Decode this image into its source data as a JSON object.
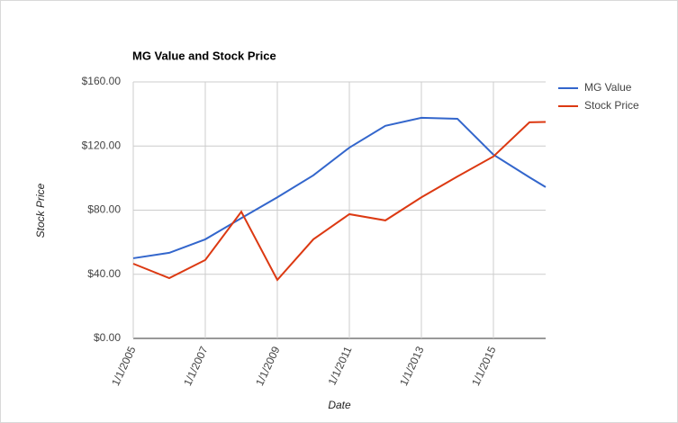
{
  "chart_data": {
    "type": "line",
    "title": "MG Value and Stock Price",
    "x_label": "Date",
    "y_label": "Stock Price",
    "x": [
      2005,
      2006,
      2007,
      2008,
      2009,
      2010,
      2011,
      2012,
      2013,
      2014,
      2015,
      2016,
      2016.45
    ],
    "series": [
      {
        "name": "MG Value",
        "color": "#3366cc",
        "values": [
          50,
          53.4,
          61.8,
          75,
          88,
          101.7,
          119,
          132.6,
          137.6,
          137,
          114.6,
          100.5,
          94.4
        ]
      },
      {
        "name": "Stock Price",
        "color": "#dc3912",
        "values": [
          46.6,
          37.6,
          48.9,
          79,
          36.5,
          61.8,
          77.5,
          73.6,
          88,
          101,
          113.5,
          134.8,
          135
        ]
      }
    ],
    "xlim": [
      2005,
      2016.45
    ],
    "xticks": [
      {
        "value": 2005,
        "label": "1/1/2005"
      },
      {
        "value": 2007,
        "label": "1/1/2007"
      },
      {
        "value": 2009,
        "label": "1/1/2009"
      },
      {
        "value": 2011,
        "label": "1/1/2011"
      },
      {
        "value": 2013,
        "label": "1/1/2013"
      },
      {
        "value": 2015,
        "label": "1/1/2015"
      }
    ],
    "ylim": [
      0,
      160
    ],
    "yticks": [
      {
        "value": 0,
        "label": "$0.00"
      },
      {
        "value": 40,
        "label": "$40.00"
      },
      {
        "value": 80,
        "label": "$80.00"
      },
      {
        "value": 120,
        "label": "$120.00"
      },
      {
        "value": 160,
        "label": "$160.00"
      }
    ],
    "grid": true,
    "legend": "right"
  }
}
